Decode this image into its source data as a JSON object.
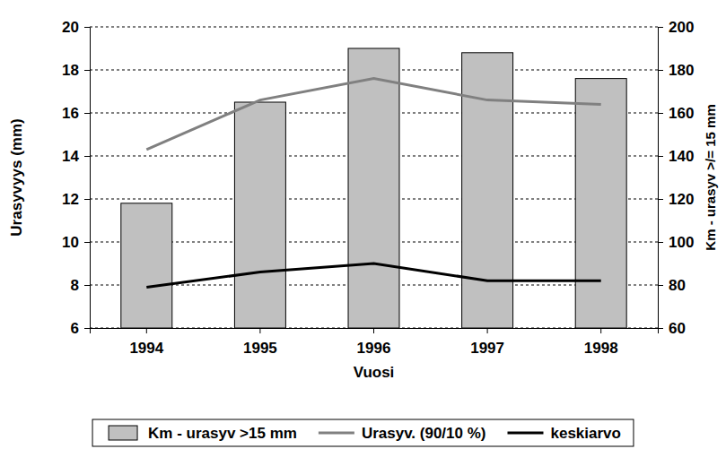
{
  "chart_data": {
    "type": "bar",
    "x_label": "Vuosi",
    "y_label": "Urasyvyys (mm)",
    "y2_label": "Km - urasyv >/= 15 mm",
    "categories": [
      "1994",
      "1995",
      "1996",
      "1997",
      "1998"
    ],
    "series": [
      {
        "name": "Km - urasyv >15 mm",
        "type": "bar",
        "color": "#c0c0c0",
        "axis": "y2",
        "values": [
          118,
          165,
          190,
          188,
          176
        ]
      },
      {
        "name": "Urasyv. (90/10 %)",
        "type": "line",
        "color": "#808080",
        "values": [
          14.3,
          16.6,
          17.6,
          16.6,
          16.4
        ]
      },
      {
        "name": "keskiarvo",
        "type": "line",
        "color": "#000000",
        "values": [
          7.9,
          8.6,
          9.0,
          8.2,
          8.2
        ]
      }
    ],
    "ylim": [
      6,
      20
    ],
    "yticks": [
      6,
      8,
      10,
      12,
      14,
      16,
      18,
      20
    ],
    "y2lim": [
      60,
      200
    ],
    "y2ticks": [
      60,
      80,
      100,
      120,
      140,
      160,
      180,
      200
    ],
    "grid": true,
    "legend": "bottom"
  }
}
